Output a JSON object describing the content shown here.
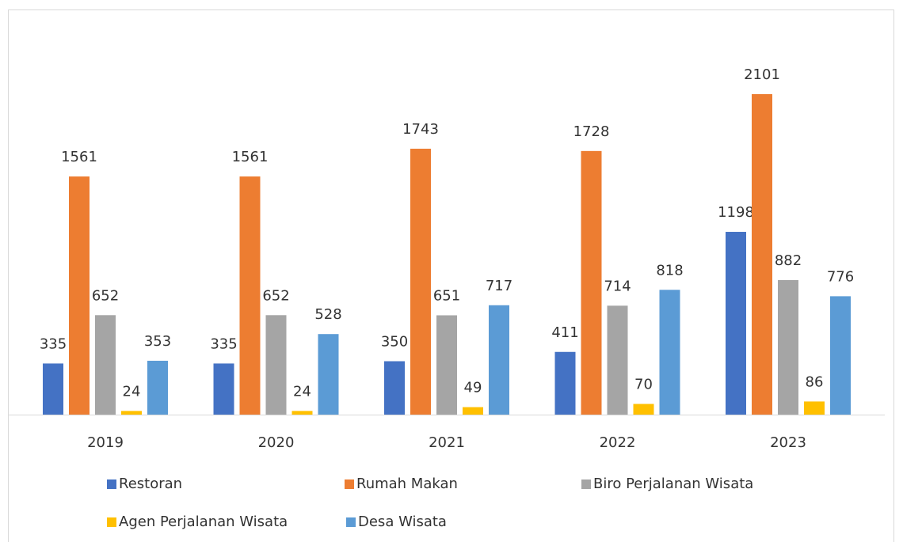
{
  "chart_data": {
    "type": "bar",
    "categories": [
      "2019",
      "2020",
      "2021",
      "2022",
      "2023"
    ],
    "series": [
      {
        "name": "Restoran",
        "color": "#4472c4",
        "values": [
          335,
          335,
          350,
          411,
          1198
        ]
      },
      {
        "name": "Rumah Makan",
        "color": "#ed7d31",
        "values": [
          1561,
          1561,
          1743,
          1728,
          2101
        ]
      },
      {
        "name": "Biro Perjalanan Wisata",
        "color": "#a5a5a5",
        "values": [
          652,
          652,
          651,
          714,
          882
        ]
      },
      {
        "name": "Agen Perjalanan Wisata",
        "color": "#ffc000",
        "values": [
          24,
          24,
          49,
          70,
          86
        ]
      },
      {
        "name": "Desa Wisata",
        "color": "#5b9bd5",
        "values": [
          353,
          528,
          717,
          818,
          776
        ]
      }
    ]
  }
}
